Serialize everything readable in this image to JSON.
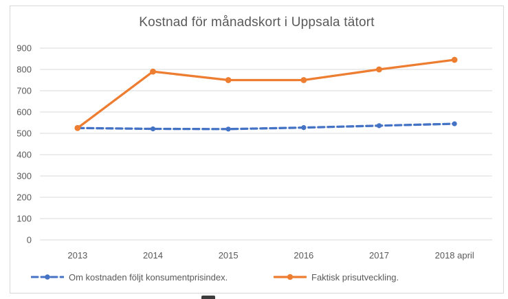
{
  "window": {
    "background": "#ffffff",
    "border_color": "#d7d7d7"
  },
  "chart_data": {
    "type": "line",
    "title": "Kostnad för månadskort i Uppsala tätort",
    "categories": [
      "2013",
      "2014",
      "2015",
      "2016",
      "2017",
      "2018 april"
    ],
    "series": [
      {
        "name": "Om kostnaden följt konsumentprisindex.",
        "color": "#4472C4",
        "line_style": "dashed",
        "marker": "circle",
        "values": [
          525,
          521,
          520,
          527,
          536,
          545
        ]
      },
      {
        "name": "Faktisk prisutveckling.",
        "color": "#ED7D31",
        "line_style": "solid",
        "marker": "circle",
        "values": [
          525,
          790,
          750,
          750,
          800,
          845
        ]
      }
    ],
    "ylim": [
      0,
      900
    ],
    "yticks": [
      0,
      100,
      200,
      300,
      400,
      500,
      600,
      700,
      800,
      900
    ],
    "xlabel": "",
    "ylabel": "",
    "grid": "horizontal",
    "gridline_color": "#d9d9d9",
    "text_color": "#595959",
    "legend_position": "bottom"
  }
}
